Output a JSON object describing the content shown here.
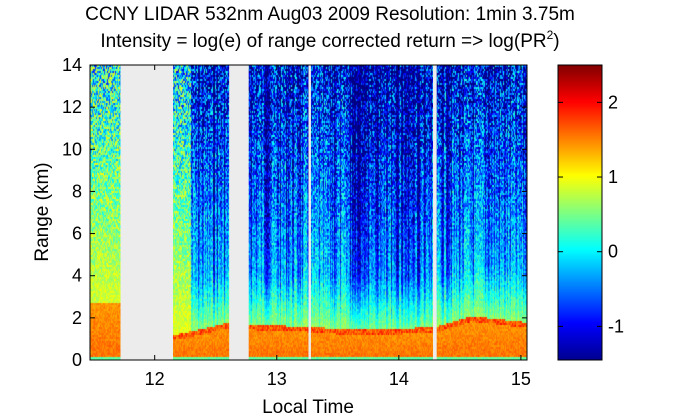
{
  "chart_data": {
    "type": "heatmap",
    "title": "CCNY LIDAR 532nm Aug03 2009 Resolution: 1min 3.75m",
    "subtitle": {
      "prefix": "Intensity = log(e) of range corrected return => log(PR",
      "superscript": "2",
      "suffix": ")"
    },
    "xlabel": "Local Time",
    "ylabel": "Range (km)",
    "xlim": [
      11.47,
      15.05
    ],
    "ylim": [
      0,
      14
    ],
    "x_ticks": [
      {
        "value": 12,
        "label": "12"
      },
      {
        "value": 13,
        "label": "13"
      },
      {
        "value": 14,
        "label": "14"
      },
      {
        "value": 15,
        "label": "15"
      }
    ],
    "y_ticks": [
      {
        "value": 0,
        "label": "0"
      },
      {
        "value": 2,
        "label": "2"
      },
      {
        "value": 4,
        "label": "4"
      },
      {
        "value": 6,
        "label": "6"
      },
      {
        "value": 8,
        "label": "8"
      },
      {
        "value": 10,
        "label": "10"
      },
      {
        "value": 12,
        "label": "12"
      },
      {
        "value": 14,
        "label": "14"
      }
    ],
    "colorbar": {
      "colormap": "jet",
      "range": [
        -1.45,
        2.5
      ],
      "ticks": [
        {
          "value": 2,
          "label": "2"
        },
        {
          "value": 1,
          "label": "1"
        },
        {
          "value": 0,
          "label": "0"
        },
        {
          "value": -1,
          "label": "-1"
        }
      ]
    },
    "no_data_intervals": [
      {
        "start": 11.72,
        "end": 12.15
      },
      {
        "start": 12.61,
        "end": 12.77
      },
      {
        "start": 13.26,
        "end": 13.28
      },
      {
        "start": 14.28,
        "end": 14.31
      }
    ],
    "boundary_layer_top_km": [
      {
        "time": 11.47,
        "km": 2.7
      },
      {
        "time": 11.72,
        "km": 2.7
      },
      {
        "time": 12.15,
        "km": 1.2
      },
      {
        "time": 12.4,
        "km": 1.5
      },
      {
        "time": 12.61,
        "km": 1.8
      },
      {
        "time": 12.77,
        "km": 1.7
      },
      {
        "time": 13.26,
        "km": 1.6
      },
      {
        "time": 13.5,
        "km": 1.5
      },
      {
        "time": 14.0,
        "km": 1.5
      },
      {
        "time": 14.31,
        "km": 1.6
      },
      {
        "time": 14.6,
        "km": 2.1
      },
      {
        "time": 15.05,
        "km": 1.8
      }
    ]
  }
}
